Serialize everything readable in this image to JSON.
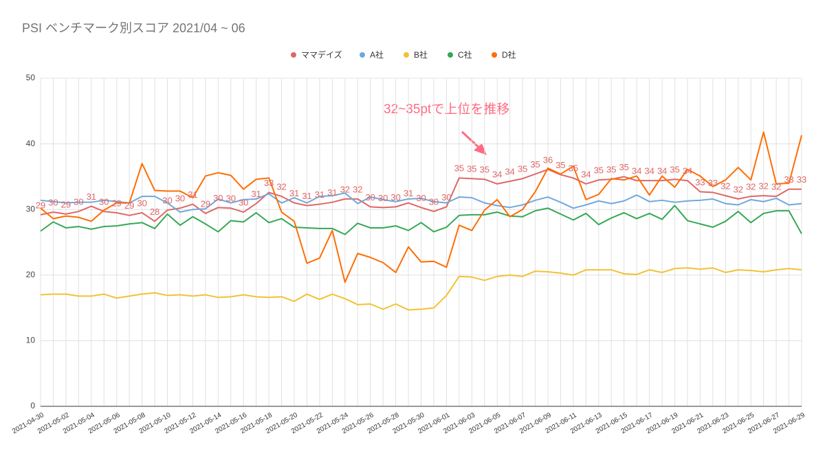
{
  "chart_data": {
    "type": "line",
    "title": "PSI ベンチマーク別スコア 2021/04 ~ 06",
    "annotation": "32~35ptで上位を推移",
    "categories": [
      "2021-04-30",
      null,
      "2021-05-02",
      null,
      "2021-05-04",
      null,
      "2021-05-06",
      null,
      "2021-05-08",
      null,
      "2021-05-10",
      null,
      "2021-05-12",
      null,
      "2021-05-14",
      null,
      "2021-05-16",
      null,
      "2021-05-18",
      null,
      "2021-05-20",
      null,
      "2021-05-22",
      null,
      "2021-05-24",
      null,
      "2021-05-26",
      null,
      "2021-05-28",
      null,
      "2021-05-30",
      null,
      "2021-06-01",
      null,
      "2021-06-03",
      null,
      "2021-06-05",
      null,
      "2021-06-07",
      null,
      "2021-06-09",
      null,
      "2021-06-11",
      null,
      "2021-06-13",
      null,
      "2021-06-15",
      null,
      "2021-06-17",
      null,
      "2021-06-19",
      null,
      "2021-06-21",
      null,
      "2021-06-23",
      null,
      "2021-06-25",
      null,
      "2021-06-27",
      null,
      "2021-06-29"
    ],
    "series": [
      {
        "name": "ママデイズ",
        "color": "#e06666",
        "values": [
          29.2,
          29.6,
          29.3,
          29.7,
          30.5,
          29.7,
          29.5,
          29.1,
          29.5,
          28.2,
          29.9,
          30.2,
          30.8,
          29.4,
          30.3,
          30.2,
          29.6,
          30.9,
          32.6,
          32.0,
          31.0,
          30.6,
          30.8,
          31.1,
          31.6,
          31.6,
          30.4,
          30.3,
          30.4,
          31.0,
          30.3,
          29.7,
          30.4,
          34.8,
          34.7,
          34.6,
          33.9,
          34.3,
          34.7,
          35.4,
          36.1,
          35.3,
          34.8,
          33.9,
          34.5,
          34.6,
          35.0,
          34.4,
          34.4,
          34.4,
          34.6,
          34.4,
          32.7,
          32.6,
          32.1,
          31.6,
          32.0,
          32.1,
          32.0,
          33.1,
          33.1
        ],
        "value_labels": [
          "29",
          "30",
          "29",
          "30",
          "31",
          "30",
          "29",
          "29",
          "30",
          "28",
          "30",
          "30",
          "31",
          "29",
          "30",
          "30",
          "30",
          "31",
          "33",
          "32",
          "31",
          "31",
          "31",
          "31",
          "32",
          "32",
          "30",
          "30",
          "30",
          "31",
          "30",
          "30",
          "30",
          "35",
          "35",
          "35",
          "34",
          "34",
          "35",
          "35",
          "36",
          "35",
          "35",
          "34",
          "35",
          "35",
          "35",
          "34",
          "34",
          "34",
          "35",
          "34",
          "33",
          "33",
          "32",
          "32",
          "32",
          "32",
          "32",
          "33",
          "33"
        ]
      },
      {
        "name": "A社",
        "color": "#6fa8dc",
        "values": [
          31.4,
          31.2,
          31.0,
          31.1,
          31.1,
          31.4,
          31.2,
          31.0,
          32.0,
          32.0,
          31.0,
          29.6,
          30.0,
          30.1,
          31.6,
          31.0,
          31.5,
          31.6,
          32.4,
          31.0,
          31.8,
          31.0,
          32.0,
          32.1,
          32.5,
          30.9,
          31.9,
          31.5,
          31.2,
          31.6,
          31.7,
          31.2,
          31.0,
          31.9,
          31.8,
          31.0,
          30.6,
          30.3,
          30.7,
          31.4,
          31.9,
          31.1,
          30.2,
          30.7,
          31.3,
          30.9,
          31.3,
          32.2,
          31.2,
          31.4,
          31.1,
          31.3,
          31.4,
          31.6,
          30.9,
          30.7,
          31.5,
          31.2,
          31.7,
          30.7,
          30.9
        ]
      },
      {
        "name": "B社",
        "color": "#f1c232",
        "values": [
          17.0,
          17.1,
          17.1,
          16.8,
          16.8,
          17.1,
          16.5,
          16.8,
          17.1,
          17.3,
          16.9,
          17.0,
          16.8,
          17.0,
          16.6,
          16.7,
          17.0,
          16.7,
          16.6,
          16.7,
          16.0,
          17.1,
          16.3,
          17.1,
          16.4,
          15.5,
          15.6,
          14.8,
          15.6,
          14.7,
          14.8,
          15.0,
          16.9,
          19.8,
          19.7,
          19.2,
          19.8,
          20.0,
          19.8,
          20.6,
          20.5,
          20.3,
          20.0,
          20.8,
          20.8,
          20.8,
          20.2,
          20.1,
          20.8,
          20.4,
          21.0,
          21.1,
          20.9,
          21.1,
          20.4,
          20.8,
          20.7,
          20.5,
          20.8,
          21.0,
          20.8
        ]
      },
      {
        "name": "C社",
        "color": "#34a853",
        "values": [
          26.7,
          28.1,
          27.2,
          27.4,
          27.0,
          27.4,
          27.5,
          27.8,
          28.0,
          27.1,
          29.3,
          27.6,
          28.9,
          27.8,
          26.6,
          28.3,
          28.1,
          29.5,
          28.0,
          28.6,
          27.3,
          27.2,
          27.1,
          27.1,
          26.2,
          27.9,
          27.2,
          27.2,
          27.5,
          26.8,
          28.0,
          26.6,
          27.3,
          29.1,
          29.2,
          29.2,
          29.6,
          29.0,
          28.9,
          29.8,
          30.2,
          29.3,
          28.4,
          29.4,
          27.7,
          28.7,
          29.5,
          28.6,
          29.4,
          28.5,
          30.6,
          28.3,
          27.8,
          27.3,
          28.2,
          29.7,
          28.0,
          29.4,
          29.8,
          29.8,
          26.3
        ]
      },
      {
        "name": "D社",
        "color": "#ff6d01",
        "values": [
          30.2,
          28.6,
          29.0,
          28.8,
          28.2,
          29.9,
          31.0,
          31.0,
          37.0,
          32.9,
          32.8,
          32.8,
          31.8,
          35.1,
          35.6,
          35.2,
          33.1,
          34.6,
          34.8,
          29.6,
          28.2,
          21.8,
          22.6,
          26.8,
          18.9,
          23.3,
          22.7,
          21.9,
          20.4,
          24.3,
          22.0,
          22.1,
          21.2,
          27.6,
          26.8,
          29.9,
          31.5,
          28.9,
          30.0,
          32.7,
          36.3,
          35.4,
          36.6,
          31.5,
          32.3,
          34.7,
          34.5,
          35.1,
          32.2,
          35.1,
          33.4,
          36.1,
          35.1,
          33.5,
          34.5,
          36.4,
          34.5,
          41.8,
          33.9,
          34.0,
          41.3
        ]
      }
    ],
    "ylim": [
      0,
      50
    ],
    "yticks": [
      0,
      10,
      20,
      30,
      40,
      50
    ],
    "grid": true,
    "legend": "top"
  }
}
